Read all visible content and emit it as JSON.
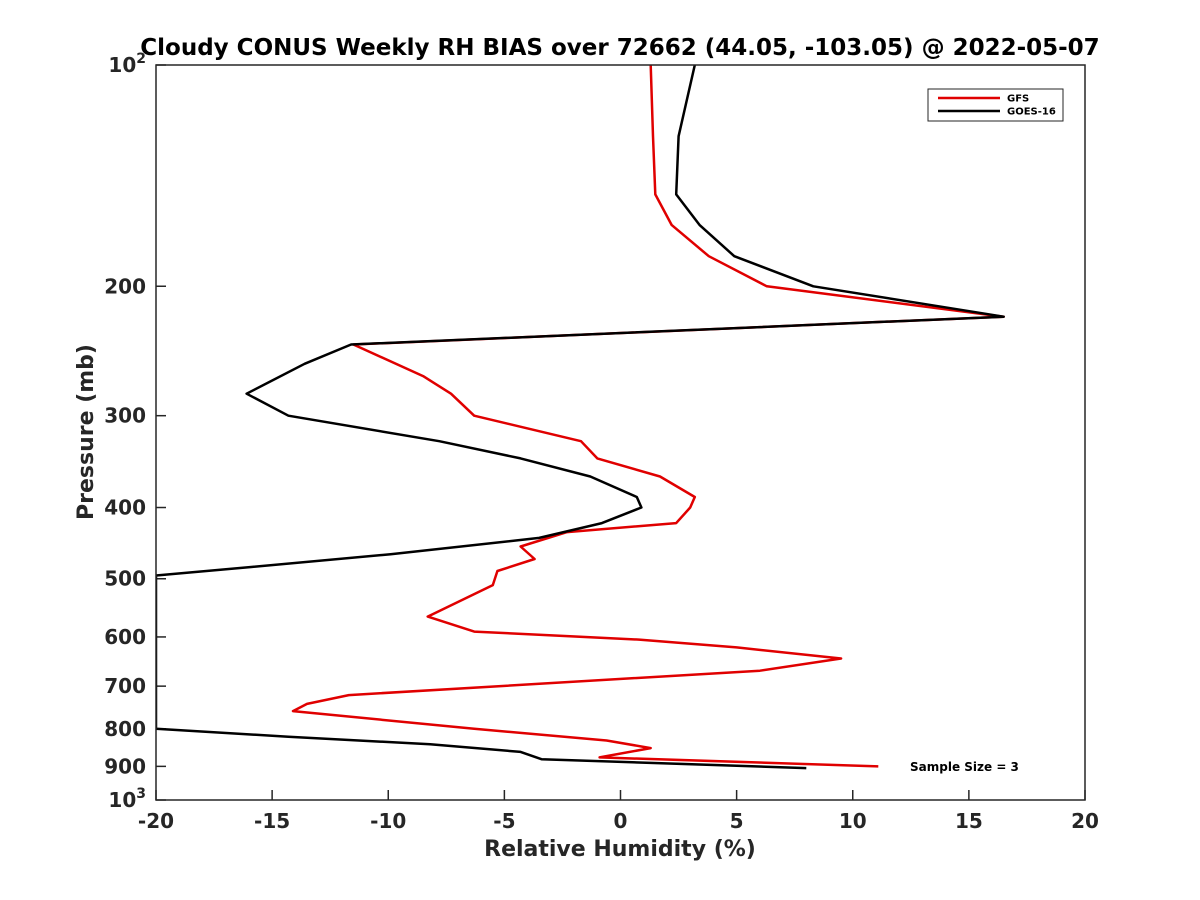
{
  "chart_data": {
    "type": "line",
    "title": "Cloudy CONUS Weekly RH BIAS over 72662 (44.05, -103.05) @ 2022-05-07",
    "xlabel": "Relative Humidity (%)",
    "ylabel": "Pressure (mb)",
    "xlim": [
      -20,
      20
    ],
    "ylim": [
      100,
      1000
    ],
    "y_scale": "log",
    "y_reversed": true,
    "x_ticks": [
      "-20",
      "-15",
      "-10",
      "-5",
      "0",
      "5",
      "10",
      "15",
      "20"
    ],
    "y_ticks": [
      {
        "value": 100,
        "base": "10",
        "exp": "2"
      },
      {
        "value": 200,
        "label": "200"
      },
      {
        "value": 300,
        "label": "300"
      },
      {
        "value": 400,
        "label": "400"
      },
      {
        "value": 500,
        "label": "500"
      },
      {
        "value": 600,
        "label": "600"
      },
      {
        "value": 700,
        "label": "700"
      },
      {
        "value": 800,
        "label": "800"
      },
      {
        "value": 900,
        "label": "900"
      },
      {
        "value": 1000,
        "base": "10",
        "exp": "3"
      }
    ],
    "grid": false,
    "legend_position": "top-right",
    "series": [
      {
        "name": "GFS",
        "color": "#e00000",
        "points": [
          [
            1.3,
            100
          ],
          [
            1.4,
            125
          ],
          [
            1.5,
            150
          ],
          [
            2.2,
            165
          ],
          [
            3.8,
            182
          ],
          [
            6.3,
            200
          ],
          [
            16.5,
            220
          ],
          [
            -11.5,
            240
          ],
          [
            -8.5,
            265
          ],
          [
            -7.3,
            280
          ],
          [
            -6.3,
            300
          ],
          [
            -1.7,
            325
          ],
          [
            -1.0,
            343
          ],
          [
            1.7,
            363
          ],
          [
            3.2,
            387
          ],
          [
            3.0,
            400
          ],
          [
            2.4,
            420
          ],
          [
            -2.3,
            432
          ],
          [
            -4.3,
            452
          ],
          [
            -3.7,
            470
          ],
          [
            -5.3,
            488
          ],
          [
            -5.5,
            510
          ],
          [
            -8.3,
            563
          ],
          [
            -6.3,
            590
          ],
          [
            0.8,
            605
          ],
          [
            5.0,
            620
          ],
          [
            9.5,
            642
          ],
          [
            6.0,
            667
          ],
          [
            -11.7,
            720
          ],
          [
            -13.5,
            740
          ],
          [
            -14.1,
            757
          ],
          [
            -6.3,
            800
          ],
          [
            -0.6,
            830
          ],
          [
            1.3,
            850
          ],
          [
            -0.9,
            875
          ],
          [
            11.1,
            900
          ]
        ]
      },
      {
        "name": "GOES-16",
        "color": "#000000",
        "points": [
          [
            3.2,
            100
          ],
          [
            2.5,
            125
          ],
          [
            2.4,
            150
          ],
          [
            3.4,
            165
          ],
          [
            4.9,
            182
          ],
          [
            8.3,
            200
          ],
          [
            16.5,
            220
          ],
          [
            -11.6,
            240
          ],
          [
            -13.6,
            255
          ],
          [
            -16.1,
            280
          ],
          [
            -14.3,
            300
          ],
          [
            -7.8,
            325
          ],
          [
            -4.3,
            343
          ],
          [
            -1.3,
            363
          ],
          [
            0.7,
            387
          ],
          [
            0.9,
            400
          ],
          [
            -0.8,
            420
          ],
          [
            -3.5,
            440
          ],
          [
            -9.9,
            463
          ],
          [
            -15.9,
            482
          ],
          [
            -20.0,
            495
          ],
          [
            -20.0,
            800
          ],
          [
            -14.3,
            820
          ],
          [
            -8.2,
            840
          ],
          [
            -4.3,
            860
          ],
          [
            -3.4,
            880
          ],
          [
            8.0,
            905
          ]
        ]
      }
    ],
    "annotation": "Sample Size = 3"
  }
}
